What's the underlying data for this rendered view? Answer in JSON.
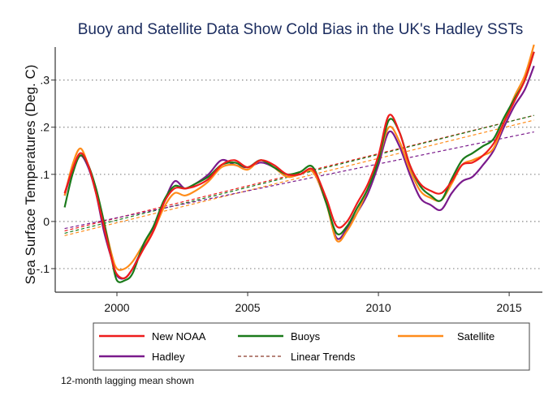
{
  "chart_data": {
    "type": "line",
    "title": "Buoy and Satellite Data Show Cold Bias in the UK's Hadley SSTs",
    "xlabel": "",
    "ylabel": "Sea Surface Temperatures (Deg. C)",
    "xlim": [
      1997.64,
      2016.27
    ],
    "ylim": [
      -0.15,
      0.37
    ],
    "xticks": [
      2000,
      2005,
      2010,
      2015
    ],
    "xtick_labels": [
      "2000",
      "2005",
      "2010",
      "2015"
    ],
    "yticks": [
      -0.1,
      0,
      0.1,
      0.2,
      0.3
    ],
    "ytick_labels": [
      "-.1",
      "0",
      ".1",
      ".2",
      ".3"
    ],
    "grid": "horizontal-dotted",
    "legend_placement": "bottom",
    "x": [
      1998.0,
      1998.3,
      1998.6,
      1998.9,
      1999.2,
      1999.5,
      1999.8,
      2000.0,
      2000.3,
      2000.6,
      2001.0,
      2001.4,
      2001.8,
      2002.2,
      2002.6,
      2003.0,
      2003.5,
      2004.0,
      2004.5,
      2005.0,
      2005.5,
      2006.0,
      2006.5,
      2007.0,
      2007.5,
      2008.0,
      2008.4,
      2008.8,
      2009.2,
      2009.6,
      2010.0,
      2010.4,
      2010.8,
      2011.2,
      2011.6,
      2012.0,
      2012.4,
      2012.8,
      2013.2,
      2013.6,
      2014.0,
      2014.4,
      2014.8,
      2015.2,
      2015.6,
      2015.95
    ],
    "series": [
      {
        "name": "New NOAA",
        "color": "#ee1c1c",
        "values": [
          0.06,
          0.11,
          0.145,
          0.12,
          0.06,
          -0.01,
          -0.08,
          -0.112,
          -0.12,
          -0.1,
          -0.06,
          -0.02,
          0.04,
          0.07,
          0.07,
          0.075,
          0.09,
          0.12,
          0.13,
          0.115,
          0.13,
          0.12,
          0.1,
          0.1,
          0.11,
          0.05,
          -0.01,
          0.0,
          0.04,
          0.08,
          0.14,
          0.225,
          0.19,
          0.12,
          0.08,
          0.065,
          0.06,
          0.085,
          0.12,
          0.125,
          0.14,
          0.165,
          0.21,
          0.255,
          0.3,
          0.36
        ],
        "trend": [
          -0.02,
          0.225
        ]
      },
      {
        "name": "Buoys",
        "color": "#1a7a1a",
        "values": [
          0.03,
          0.1,
          0.14,
          0.12,
          0.07,
          0.0,
          -0.08,
          -0.125,
          -0.125,
          -0.11,
          -0.05,
          -0.01,
          0.045,
          0.075,
          0.07,
          0.08,
          0.095,
          0.12,
          0.125,
          0.115,
          0.13,
          0.115,
          0.1,
          0.105,
          0.115,
          0.04,
          -0.025,
          -0.01,
          0.03,
          0.07,
          0.13,
          0.215,
          0.19,
          0.12,
          0.075,
          0.055,
          0.045,
          0.09,
          0.13,
          0.145,
          0.16,
          0.175,
          0.22,
          0.26,
          0.3,
          0.36
        ],
        "trend": [
          -0.025,
          0.225
        ]
      },
      {
        "name": "Satellite",
        "color": "#ff8c1a",
        "values": [
          0.055,
          0.12,
          0.155,
          0.12,
          0.07,
          0.0,
          -0.07,
          -0.1,
          -0.1,
          -0.085,
          -0.05,
          -0.02,
          0.03,
          0.06,
          0.055,
          0.065,
          0.085,
          0.115,
          0.12,
          0.11,
          0.13,
          0.115,
          0.095,
          0.1,
          0.105,
          0.04,
          -0.04,
          -0.02,
          0.02,
          0.07,
          0.13,
          0.2,
          0.17,
          0.11,
          0.065,
          0.05,
          0.045,
          0.08,
          0.12,
          0.13,
          0.14,
          0.155,
          0.21,
          0.265,
          0.31,
          0.375
        ],
        "trend": [
          -0.03,
          0.215
        ]
      },
      {
        "name": "Hadley",
        "color": "#7a1a8c",
        "values": [
          0.055,
          0.11,
          0.14,
          0.115,
          0.06,
          -0.02,
          -0.08,
          -0.115,
          -0.12,
          -0.1,
          -0.055,
          -0.015,
          0.04,
          0.085,
          0.07,
          0.08,
          0.1,
          0.13,
          0.12,
          0.115,
          0.125,
          0.115,
          0.095,
          0.1,
          0.105,
          0.04,
          -0.035,
          -0.015,
          0.02,
          0.06,
          0.12,
          0.19,
          0.16,
          0.1,
          0.05,
          0.035,
          0.025,
          0.06,
          0.085,
          0.095,
          0.12,
          0.15,
          0.2,
          0.245,
          0.28,
          0.33
        ],
        "trend": [
          -0.015,
          0.19
        ]
      }
    ],
    "trend_x": [
      1998.0,
      2015.95
    ],
    "legend": [
      "New NOAA",
      "Buoys",
      "Satellite",
      "Hadley",
      "Linear Trends"
    ],
    "trend_legend_color": "#8b3a2a",
    "note": "12-month lagging mean shown"
  }
}
